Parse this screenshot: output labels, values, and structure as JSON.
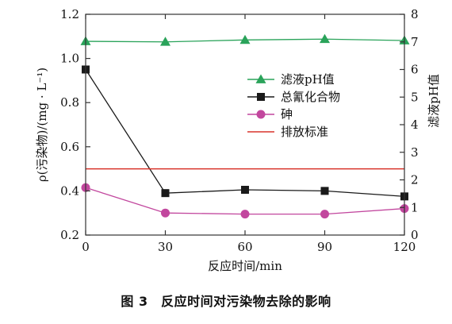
{
  "caption": "图 3　反应时间对污染物去除的影响",
  "chart_data": {
    "type": "line",
    "xlabel": "反应时间/min",
    "ylabel": "ρ(污染物)/(mg · L⁻¹)",
    "y2label": "滤液pH值",
    "xlim": [
      0,
      120
    ],
    "ylim": [
      0.2,
      1.2
    ],
    "y2lim": [
      0,
      8
    ],
    "x_ticks": [
      "0",
      "30",
      "60",
      "90",
      "120"
    ],
    "y_ticks": [
      "0.2",
      "0.4",
      "0.6",
      "0.8",
      "1.0",
      "1.2"
    ],
    "y2_ticks": [
      "0",
      "1",
      "2",
      "3",
      "4",
      "5",
      "6",
      "7",
      "8"
    ],
    "legend_position": "upper-center",
    "series": [
      {
        "name": "滤液pH值",
        "axis": "right",
        "marker": "triangle",
        "color": "#2aa35a",
        "x": [
          0,
          30,
          60,
          90,
          120
        ],
        "y": [
          7.02,
          7.0,
          7.07,
          7.1,
          7.05
        ]
      },
      {
        "name": "总氰化合物",
        "axis": "left",
        "marker": "square",
        "color": "#1a1a1a",
        "x": [
          0,
          30,
          60,
          90,
          120
        ],
        "y": [
          0.95,
          0.39,
          0.405,
          0.4,
          0.375
        ]
      },
      {
        "name": "砷",
        "axis": "left",
        "marker": "circle",
        "color": "#c2479e",
        "x": [
          0,
          30,
          60,
          90,
          120
        ],
        "y": [
          0.415,
          0.3,
          0.295,
          0.295,
          0.32
        ]
      },
      {
        "name": "排放标准",
        "axis": "left",
        "marker": "none",
        "color": "#d9342b",
        "x": [
          0,
          120
        ],
        "y": [
          0.5,
          0.5
        ]
      }
    ]
  }
}
